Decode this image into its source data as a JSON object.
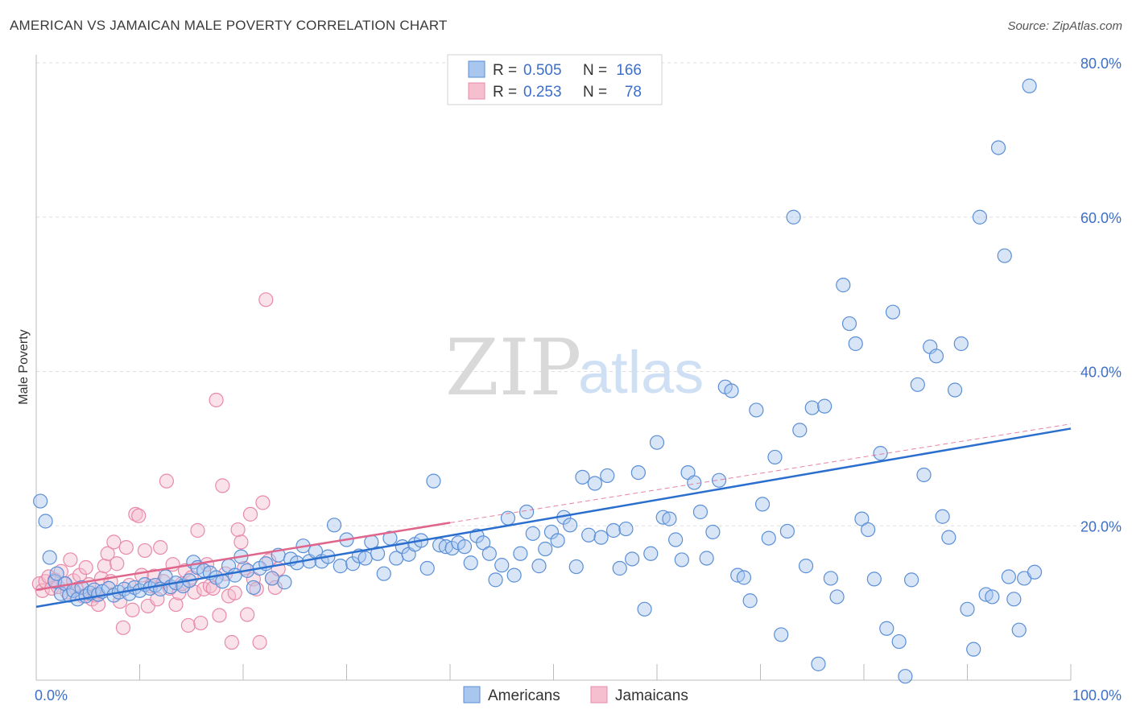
{
  "title": "AMERICAN VS JAMAICAN MALE POVERTY CORRELATION CHART",
  "source": "Source: ZipAtlas.com",
  "watermark": {
    "part1": "ZIP",
    "part2": "atlas"
  },
  "legend_top": [
    {
      "r_label": "R =",
      "r_value": "0.505",
      "n_label": "N =",
      "n_value": "166"
    },
    {
      "r_label": "R =",
      "r_value": "0.253",
      "n_label": "N =",
      "n_value": "78"
    }
  ],
  "legend_bottom": [
    "Americans",
    "Jamaicans"
  ],
  "colors": {
    "blue": "#5b8fd6",
    "blue_fill": "#a9c6ee",
    "blue_line": "#2b6fce",
    "pink": "#e88aa8",
    "pink_fill": "#f5bfd0",
    "pink_line": "#e0658b",
    "tick": "#3d6fc9"
  },
  "chart_data": {
    "type": "scatter",
    "title": "AMERICAN VS JAMAICAN MALE POVERTY CORRELATION CHART",
    "xlabel": "",
    "ylabel": "Male Poverty",
    "xlim": [
      0,
      100
    ],
    "ylim": [
      0,
      80
    ],
    "x_tick_labels": [
      "0.0%",
      "100.0%"
    ],
    "y_tick_labels": [
      "20.0%",
      "40.0%",
      "60.0%",
      "80.0%"
    ],
    "y_ticks": [
      20,
      40,
      60,
      80
    ],
    "grid": true,
    "legend": "top-center",
    "series": [
      {
        "name": "Americans",
        "r": 0.505,
        "n": 166,
        "trend": {
          "x": [
            0,
            100
          ],
          "y": [
            9.5,
            32.6
          ]
        },
        "points": [
          [
            0.4,
            23.2
          ],
          [
            0.9,
            20.6
          ],
          [
            1.3,
            15.9
          ],
          [
            1.8,
            12.8
          ],
          [
            2.0,
            13.8
          ],
          [
            2.4,
            11.2
          ],
          [
            2.8,
            12.5
          ],
          [
            3.2,
            11.0
          ],
          [
            3.6,
            11.6
          ],
          [
            4.0,
            10.5
          ],
          [
            4.4,
            12.0
          ],
          [
            4.8,
            10.9
          ],
          [
            5.2,
            11.3
          ],
          [
            5.6,
            11.7
          ],
          [
            6.0,
            11.1
          ],
          [
            6.4,
            11.5
          ],
          [
            7.0,
            11.9
          ],
          [
            7.5,
            11.0
          ],
          [
            8.0,
            11.4
          ],
          [
            8.5,
            11.8
          ],
          [
            9.0,
            11.2
          ],
          [
            9.5,
            12.0
          ],
          [
            10.0,
            11.6
          ],
          [
            10.5,
            12.4
          ],
          [
            11.0,
            11.9
          ],
          [
            11.5,
            12.3
          ],
          [
            12.0,
            11.8
          ],
          [
            12.5,
            13.4
          ],
          [
            13.0,
            12.1
          ],
          [
            13.5,
            12.6
          ],
          [
            14.2,
            12.2
          ],
          [
            14.8,
            12.9
          ],
          [
            15.2,
            15.3
          ],
          [
            15.6,
            14.6
          ],
          [
            16.2,
            14.2
          ],
          [
            16.8,
            13.9
          ],
          [
            17.4,
            13.3
          ],
          [
            18.0,
            12.8
          ],
          [
            18.6,
            14.8
          ],
          [
            19.2,
            13.6
          ],
          [
            19.8,
            16.0
          ],
          [
            20.4,
            14.2
          ],
          [
            21.0,
            12.0
          ],
          [
            21.6,
            14.5
          ],
          [
            22.2,
            15.1
          ],
          [
            22.8,
            13.2
          ],
          [
            23.4,
            16.2
          ],
          [
            24.0,
            12.7
          ],
          [
            24.6,
            15.7
          ],
          [
            25.2,
            15.2
          ],
          [
            25.8,
            17.4
          ],
          [
            26.4,
            15.4
          ],
          [
            27.0,
            16.7
          ],
          [
            27.6,
            15.4
          ],
          [
            28.2,
            16.0
          ],
          [
            28.8,
            20.1
          ],
          [
            29.4,
            14.8
          ],
          [
            30.0,
            18.2
          ],
          [
            30.6,
            15.1
          ],
          [
            31.2,
            16.1
          ],
          [
            31.8,
            15.8
          ],
          [
            32.4,
            17.9
          ],
          [
            33.0,
            16.4
          ],
          [
            33.6,
            13.8
          ],
          [
            34.2,
            18.4
          ],
          [
            34.8,
            15.8
          ],
          [
            35.4,
            17.3
          ],
          [
            36.0,
            16.3
          ],
          [
            36.6,
            17.6
          ],
          [
            37.2,
            18.1
          ],
          [
            37.8,
            14.5
          ],
          [
            38.4,
            25.8
          ],
          [
            39.0,
            17.5
          ],
          [
            39.6,
            17.3
          ],
          [
            40.2,
            17.1
          ],
          [
            40.8,
            17.8
          ],
          [
            41.4,
            17.3
          ],
          [
            42.0,
            15.2
          ],
          [
            42.6,
            18.7
          ],
          [
            43.2,
            17.8
          ],
          [
            43.8,
            16.4
          ],
          [
            44.4,
            13.0
          ],
          [
            45.0,
            14.9
          ],
          [
            45.6,
            21.0
          ],
          [
            46.2,
            13.6
          ],
          [
            46.8,
            16.4
          ],
          [
            47.4,
            21.8
          ],
          [
            48.0,
            19.0
          ],
          [
            48.6,
            14.8
          ],
          [
            49.2,
            17.0
          ],
          [
            49.8,
            19.2
          ],
          [
            50.4,
            18.1
          ],
          [
            51.0,
            21.1
          ],
          [
            51.6,
            20.1
          ],
          [
            52.2,
            14.7
          ],
          [
            52.8,
            26.3
          ],
          [
            53.4,
            18.8
          ],
          [
            54.0,
            25.5
          ],
          [
            54.6,
            18.5
          ],
          [
            55.2,
            26.5
          ],
          [
            55.8,
            19.4
          ],
          [
            56.4,
            14.5
          ],
          [
            57.0,
            19.6
          ],
          [
            57.6,
            15.7
          ],
          [
            58.2,
            26.9
          ],
          [
            58.8,
            9.2
          ],
          [
            59.4,
            16.4
          ],
          [
            60.0,
            30.8
          ],
          [
            60.6,
            21.1
          ],
          [
            61.2,
            20.9
          ],
          [
            61.8,
            18.2
          ],
          [
            62.4,
            15.6
          ],
          [
            63.0,
            26.9
          ],
          [
            63.6,
            25.6
          ],
          [
            64.2,
            21.8
          ],
          [
            64.8,
            15.8
          ],
          [
            65.4,
            19.2
          ],
          [
            66.0,
            25.9
          ],
          [
            66.6,
            38.0
          ],
          [
            67.2,
            37.5
          ],
          [
            67.8,
            13.6
          ],
          [
            68.4,
            13.3
          ],
          [
            69.0,
            10.3
          ],
          [
            69.6,
            35.0
          ],
          [
            70.2,
            22.8
          ],
          [
            70.8,
            18.4
          ],
          [
            71.4,
            28.9
          ],
          [
            72.0,
            5.9
          ],
          [
            72.6,
            19.3
          ],
          [
            73.2,
            60.0
          ],
          [
            73.8,
            32.4
          ],
          [
            74.4,
            14.8
          ],
          [
            75.0,
            35.3
          ],
          [
            75.6,
            2.1
          ],
          [
            76.2,
            35.5
          ],
          [
            76.8,
            13.2
          ],
          [
            77.4,
            10.8
          ],
          [
            78.0,
            51.2
          ],
          [
            78.6,
            46.2
          ],
          [
            79.2,
            43.6
          ],
          [
            79.8,
            20.9
          ],
          [
            80.4,
            19.5
          ],
          [
            81.0,
            13.1
          ],
          [
            81.6,
            29.4
          ],
          [
            82.2,
            6.7
          ],
          [
            82.8,
            47.7
          ],
          [
            83.4,
            5.0
          ],
          [
            84.0,
            0.5
          ],
          [
            84.6,
            13.0
          ],
          [
            85.2,
            38.3
          ],
          [
            85.8,
            26.6
          ],
          [
            86.4,
            43.2
          ],
          [
            87.0,
            42.0
          ],
          [
            87.6,
            21.2
          ],
          [
            88.2,
            18.5
          ],
          [
            88.8,
            37.6
          ],
          [
            89.4,
            43.6
          ],
          [
            90.0,
            9.2
          ],
          [
            90.6,
            4.0
          ],
          [
            91.2,
            60.0
          ],
          [
            91.8,
            11.1
          ],
          [
            92.4,
            10.8
          ],
          [
            93.0,
            69.0
          ],
          [
            93.6,
            55.0
          ],
          [
            94.0,
            13.4
          ],
          [
            94.5,
            10.5
          ],
          [
            95.0,
            6.5
          ],
          [
            95.5,
            13.2
          ],
          [
            96.0,
            77.0
          ],
          [
            96.5,
            14.0
          ]
        ]
      },
      {
        "name": "Jamaicans",
        "r": 0.253,
        "n": 78,
        "trend": {
          "x": [
            0,
            40
          ],
          "y": [
            11.7,
            20.4
          ]
        },
        "trend_extended": {
          "x": [
            40,
            100
          ],
          "y": [
            20.4,
            33.2
          ]
        },
        "points": [
          [
            0.3,
            12.5
          ],
          [
            0.6,
            11.6
          ],
          [
            0.9,
            12.8
          ],
          [
            1.2,
            13.4
          ],
          [
            1.5,
            11.9
          ],
          [
            1.8,
            13.0
          ],
          [
            2.1,
            12.1
          ],
          [
            2.4,
            14.1
          ],
          [
            2.7,
            12.5
          ],
          [
            3.0,
            11.4
          ],
          [
            3.3,
            15.6
          ],
          [
            3.6,
            12.9
          ],
          [
            3.9,
            11.8
          ],
          [
            4.2,
            13.6
          ],
          [
            4.5,
            10.9
          ],
          [
            4.8,
            14.6
          ],
          [
            5.1,
            12.4
          ],
          [
            5.4,
            10.5
          ],
          [
            5.7,
            11.0
          ],
          [
            6.0,
            9.8
          ],
          [
            6.3,
            13.2
          ],
          [
            6.6,
            14.8
          ],
          [
            6.9,
            16.4
          ],
          [
            7.2,
            12.8
          ],
          [
            7.5,
            17.9
          ],
          [
            7.8,
            15.1
          ],
          [
            8.1,
            10.2
          ],
          [
            8.4,
            6.8
          ],
          [
            8.7,
            17.2
          ],
          [
            9.0,
            12.3
          ],
          [
            9.3,
            9.1
          ],
          [
            9.6,
            21.5
          ],
          [
            9.9,
            21.3
          ],
          [
            10.2,
            13.6
          ],
          [
            10.5,
            16.8
          ],
          [
            10.8,
            9.6
          ],
          [
            11.1,
            12.2
          ],
          [
            11.4,
            13.5
          ],
          [
            11.7,
            10.5
          ],
          [
            12.0,
            17.2
          ],
          [
            12.3,
            12.8
          ],
          [
            12.6,
            25.8
          ],
          [
            12.9,
            11.9
          ],
          [
            13.2,
            15.0
          ],
          [
            13.5,
            9.8
          ],
          [
            13.8,
            11.3
          ],
          [
            14.1,
            12.5
          ],
          [
            14.4,
            14.2
          ],
          [
            14.7,
            7.1
          ],
          [
            15.0,
            13.3
          ],
          [
            15.3,
            11.4
          ],
          [
            15.6,
            19.4
          ],
          [
            15.9,
            7.4
          ],
          [
            16.2,
            11.8
          ],
          [
            16.5,
            15.0
          ],
          [
            16.8,
            12.2
          ],
          [
            17.1,
            11.9
          ],
          [
            17.4,
            36.3
          ],
          [
            17.7,
            8.4
          ],
          [
            18.0,
            25.2
          ],
          [
            18.3,
            13.8
          ],
          [
            18.6,
            10.9
          ],
          [
            18.9,
            4.9
          ],
          [
            19.2,
            11.3
          ],
          [
            19.5,
            19.5
          ],
          [
            19.8,
            17.9
          ],
          [
            20.1,
            14.5
          ],
          [
            20.4,
            8.5
          ],
          [
            20.7,
            21.5
          ],
          [
            21.0,
            13.1
          ],
          [
            21.3,
            11.8
          ],
          [
            21.6,
            4.9
          ],
          [
            21.9,
            23.0
          ],
          [
            22.2,
            49.3
          ],
          [
            22.5,
            15.5
          ],
          [
            22.8,
            13.2
          ],
          [
            23.1,
            12.0
          ],
          [
            23.4,
            14.4
          ]
        ]
      }
    ]
  }
}
